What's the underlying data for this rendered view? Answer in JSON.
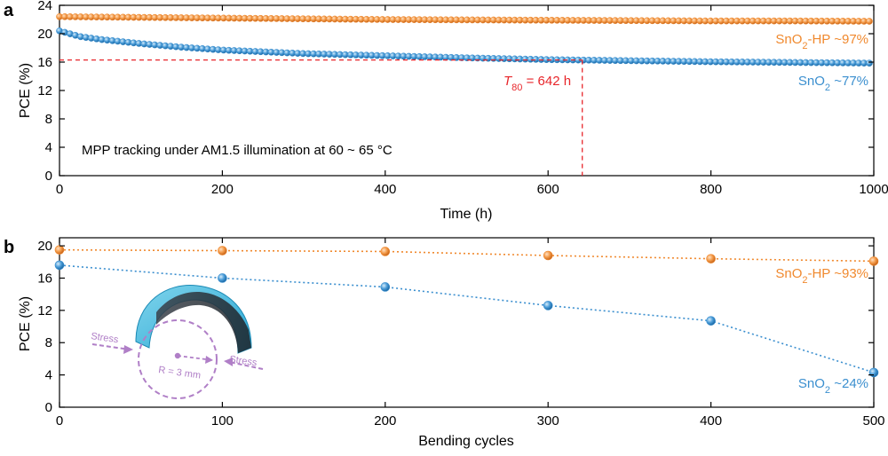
{
  "chart_data": [
    {
      "panel": "a",
      "type": "scatter",
      "xlabel": "Time (h)",
      "ylabel": "PCE (%)",
      "xlim": [
        0,
        1000
      ],
      "ylim": [
        0,
        24
      ],
      "xticks": [
        0,
        200,
        400,
        600,
        800,
        1000
      ],
      "yticks": [
        0,
        4,
        8,
        12,
        16,
        20,
        24
      ],
      "grid": false,
      "annotation": "MPP tracking under AM1.5 illumination at 60 ~ 65 °C",
      "t80": {
        "symbol": "T",
        "sub": "80",
        "text": " = 642 h",
        "x": 642,
        "y": 16.3,
        "color": "#e8262b"
      },
      "series": [
        {
          "label_main": "SnO",
          "label_sub": "2",
          "label_rest": "-HP ~97%",
          "color": "#f0892e",
          "x": [
            0,
            100,
            200,
            300,
            400,
            500,
            600,
            700,
            800,
            900,
            1000
          ],
          "y": [
            22.4,
            22.3,
            22.2,
            22.1,
            22.0,
            21.95,
            21.9,
            21.85,
            21.8,
            21.8,
            21.75
          ]
        },
        {
          "label_main": "SnO",
          "label_sub": "2",
          "label_rest": " ~77%",
          "color": "#3b8fcf",
          "x": [
            0,
            25,
            50,
            100,
            150,
            200,
            300,
            400,
            500,
            600,
            700,
            800,
            900,
            1000
          ],
          "y": [
            20.4,
            19.6,
            19.2,
            18.6,
            18.1,
            17.7,
            17.2,
            16.9,
            16.6,
            16.35,
            16.2,
            16.05,
            15.95,
            15.85
          ]
        }
      ]
    },
    {
      "panel": "b",
      "type": "line",
      "xlabel": "Bending cycles",
      "ylabel": "PCE (%)",
      "xlim": [
        0,
        500
      ],
      "ylim": [
        0,
        21
      ],
      "xticks": [
        0,
        100,
        200,
        300,
        400,
        500
      ],
      "yticks": [
        0,
        4,
        8,
        12,
        16,
        20
      ],
      "grid": false,
      "inset": {
        "stress_left": "Stress",
        "stress_right": "Stress",
        "radius": "R = 3 mm",
        "color": "#b07fc7"
      },
      "series": [
        {
          "label_main": "SnO",
          "label_sub": "2",
          "label_rest": "-HP ~93%",
          "color": "#f0892e",
          "x": [
            0,
            100,
            200,
            300,
            400,
            500
          ],
          "y": [
            19.5,
            19.4,
            19.3,
            18.8,
            18.4,
            18.1
          ]
        },
        {
          "label_main": "SnO",
          "label_sub": "2",
          "label_rest": " ~24%",
          "color": "#3b8fcf",
          "x": [
            0,
            100,
            200,
            300,
            400,
            500
          ],
          "y": [
            17.6,
            16.0,
            14.9,
            12.6,
            10.7,
            4.3
          ]
        }
      ]
    }
  ]
}
